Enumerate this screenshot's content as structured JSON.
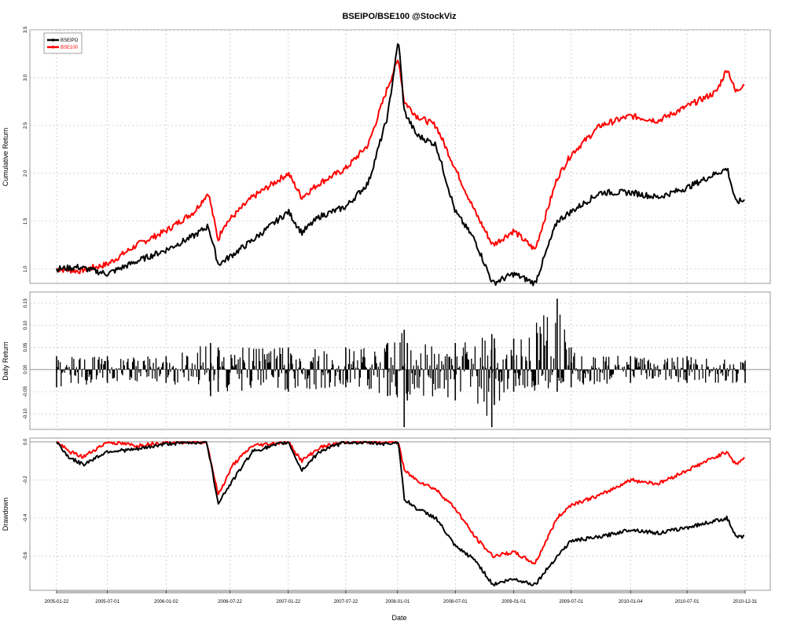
{
  "chart_data": [
    {
      "type": "line",
      "title": "BSEIPO/BSE100 @StockViz",
      "ylabel": "Cumulative Return",
      "ylim": [
        0.85,
        3.5
      ],
      "yticks": [
        "1.0",
        "1.5",
        "2.0",
        "2.5",
        "3.0",
        "3.5"
      ],
      "grid": true,
      "legend": "top-left",
      "x": [
        "2005-01-22",
        "2005-04-01",
        "2005-07-01",
        "2005-10-01",
        "2006-01-02",
        "2006-04-01",
        "2006-05-15",
        "2006-06-15",
        "2006-07-01",
        "2006-10-01",
        "2007-01-22",
        "2007-03-05",
        "2007-05-01",
        "2007-07-22",
        "2007-10-01",
        "2007-12-01",
        "2008-01-04",
        "2008-01-22",
        "2008-03-01",
        "2008-05-01",
        "2008-07-01",
        "2008-09-01",
        "2008-10-27",
        "2009-01-01",
        "2009-03-09",
        "2009-05-18",
        "2009-07-01",
        "2009-10-01",
        "2010-01-04",
        "2010-04-01",
        "2010-07-01",
        "2010-10-01",
        "2010-11-05",
        "2010-12-01",
        "2010-12-31"
      ],
      "series": [
        {
          "name": "BSEIPO",
          "color": "#000000",
          "values": [
            1.0,
            1.02,
            0.95,
            1.08,
            1.2,
            1.35,
            1.45,
            1.05,
            1.08,
            1.3,
            1.6,
            1.38,
            1.55,
            1.65,
            1.9,
            2.6,
            3.4,
            2.65,
            2.4,
            2.3,
            1.6,
            1.3,
            0.85,
            0.95,
            0.85,
            1.5,
            1.6,
            1.8,
            1.8,
            1.75,
            1.85,
            2.0,
            2.05,
            1.7,
            1.72
          ]
        },
        {
          "name": "BSE100",
          "color": "#ff0000",
          "values": [
            1.0,
            0.98,
            1.05,
            1.25,
            1.4,
            1.6,
            1.8,
            1.3,
            1.45,
            1.75,
            2.0,
            1.75,
            1.9,
            2.05,
            2.3,
            2.9,
            3.2,
            2.75,
            2.6,
            2.5,
            2.05,
            1.6,
            1.25,
            1.4,
            1.2,
            1.95,
            2.2,
            2.5,
            2.6,
            2.55,
            2.7,
            2.85,
            3.1,
            2.85,
            2.95
          ]
        }
      ]
    },
    {
      "type": "line",
      "ylabel": "Daily Return",
      "ylim": [
        -0.135,
        0.175
      ],
      "yticks": [
        "-0.10",
        "-0.05",
        "0.00",
        "0.05",
        "0.10",
        "0.15"
      ],
      "grid": true,
      "x": [
        "2005-01-22",
        "2005-07-01",
        "2006-01-02",
        "2006-05-22",
        "2006-06-15",
        "2007-01-22",
        "2007-07-22",
        "2007-12-01",
        "2008-01-22",
        "2008-02-01",
        "2008-07-01",
        "2008-10-24",
        "2008-11-01",
        "2009-01-01",
        "2009-05-18",
        "2009-07-01",
        "2010-01-04",
        "2010-07-01",
        "2010-12-31"
      ],
      "series": [
        {
          "name": "BSEIPO",
          "color": "#000000",
          "values_min": [
            -0.04,
            -0.03,
            -0.03,
            -0.06,
            -0.05,
            -0.05,
            -0.04,
            -0.06,
            -0.13,
            -0.07,
            -0.07,
            -0.13,
            -0.08,
            -0.05,
            -0.05,
            -0.04,
            -0.03,
            -0.03,
            -0.03
          ],
          "values_max": [
            0.03,
            0.03,
            0.03,
            0.06,
            0.05,
            0.05,
            0.05,
            0.06,
            0.09,
            0.06,
            0.06,
            0.08,
            0.07,
            0.07,
            0.16,
            0.05,
            0.03,
            0.03,
            0.02
          ]
        }
      ]
    },
    {
      "type": "line",
      "ylabel": "Drawdown",
      "ylim": [
        -0.78,
        0.02
      ],
      "yticks": [
        "-0.6",
        "-0.4",
        "-0.2",
        "0.0"
      ],
      "grid": true,
      "x": [
        "2005-01-22",
        "2005-03-01",
        "2005-04-15",
        "2005-07-01",
        "2005-10-01",
        "2006-01-02",
        "2006-05-10",
        "2006-06-15",
        "2006-08-01",
        "2006-10-01",
        "2007-01-22",
        "2007-03-05",
        "2007-05-01",
        "2007-07-22",
        "2007-12-01",
        "2008-01-04",
        "2008-01-22",
        "2008-03-01",
        "2008-05-01",
        "2008-07-01",
        "2008-09-01",
        "2008-10-27",
        "2009-01-01",
        "2009-03-09",
        "2009-05-18",
        "2009-07-01",
        "2009-10-01",
        "2010-01-04",
        "2010-04-01",
        "2010-07-01",
        "2010-11-05",
        "2010-12-01",
        "2010-12-31"
      ],
      "series": [
        {
          "name": "BSEIPO",
          "color": "#000000",
          "values": [
            0,
            -0.08,
            -0.12,
            -0.05,
            -0.04,
            -0.01,
            0,
            -0.32,
            -0.2,
            -0.05,
            0,
            -0.15,
            -0.05,
            0,
            -0.01,
            0,
            -0.3,
            -0.35,
            -0.4,
            -0.55,
            -0.62,
            -0.75,
            -0.72,
            -0.75,
            -0.6,
            -0.52,
            -0.5,
            -0.46,
            -0.48,
            -0.45,
            -0.4,
            -0.5,
            -0.5
          ]
        },
        {
          "name": "BSE100",
          "color": "#ff0000",
          "values": [
            0,
            -0.05,
            -0.08,
            0,
            -0.02,
            0,
            0,
            -0.28,
            -0.12,
            -0.02,
            0,
            -0.1,
            -0.03,
            0,
            0,
            0,
            -0.15,
            -0.2,
            -0.25,
            -0.35,
            -0.5,
            -0.6,
            -0.58,
            -0.64,
            -0.4,
            -0.33,
            -0.28,
            -0.2,
            -0.22,
            -0.15,
            -0.05,
            -0.12,
            -0.08
          ]
        }
      ]
    }
  ],
  "xaxis": {
    "label": "Date",
    "ticks": [
      "2005-01-22",
      "2005-07-01",
      "2006-01-02",
      "2006-07-22",
      "2007-01-22",
      "2007-07-22",
      "2008-01-01",
      "2008-07-01",
      "2009-01-01",
      "2009-07-01",
      "2010-01-04",
      "2010-07-01",
      "2010-12-31"
    ]
  }
}
